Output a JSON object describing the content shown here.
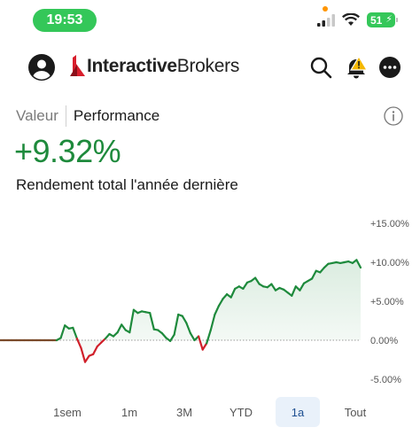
{
  "status": {
    "time": "19:53",
    "battery": "51"
  },
  "header": {
    "logo_bold": "Interactive",
    "logo_light": "Brokers"
  },
  "tabs": [
    {
      "label": "Valeur",
      "active": false
    },
    {
      "label": "Performance",
      "active": true
    }
  ],
  "performance": {
    "value": "+9.32%",
    "subtitle": "Rendement total l'année dernière"
  },
  "ranges": [
    {
      "label": "1sem",
      "active": false
    },
    {
      "label": "1m",
      "active": false
    },
    {
      "label": "3M",
      "active": false
    },
    {
      "label": "YTD",
      "active": false
    },
    {
      "label": "1a",
      "active": true
    },
    {
      "label": "Tout",
      "active": false
    }
  ],
  "colors": {
    "positive": "#1e8a3c",
    "negative": "#d0202a",
    "flat": "#7a4a2a",
    "accent": "#34c759"
  },
  "chart_data": {
    "type": "line",
    "title": "",
    "xlabel": "",
    "ylabel": "",
    "ylim": [
      -5,
      15
    ],
    "yticks": [
      15,
      10,
      5,
      0,
      -5
    ],
    "ytick_labels": [
      "+15.00%",
      "+10.00%",
      "+5.00%",
      "0.00%",
      "-5.00%"
    ],
    "grid": false,
    "series": [
      {
        "values": [
          0,
          0,
          0,
          0,
          0,
          0,
          0,
          0,
          0,
          0,
          0,
          0,
          0,
          0,
          0,
          0.3,
          1.9,
          1.5,
          1.6,
          0.2,
          -1.0,
          -2.8,
          -2.0,
          -1.8,
          -0.8,
          -0.3,
          0.2,
          0.8,
          0.5,
          1.0,
          2.0,
          1.3,
          1.0,
          3.9,
          3.5,
          3.7,
          3.6,
          3.5,
          1.4,
          1.3,
          0.9,
          0.3,
          -0.1,
          0.7,
          3.3,
          3.1,
          2.2,
          0.9,
          0.0,
          0.5,
          -1.2,
          -0.4,
          1.3,
          3.3,
          4.4,
          5.3,
          5.9,
          5.5,
          6.6,
          6.9,
          6.6,
          7.4,
          7.6,
          8.0,
          7.2,
          6.9,
          6.8,
          7.2,
          6.4,
          6.7,
          6.5,
          6.1,
          5.7,
          6.9,
          6.4,
          7.3,
          7.6,
          7.9,
          8.9,
          8.7,
          9.3,
          9.8,
          9.9,
          10.0,
          9.9,
          10.0,
          10.1,
          9.9,
          10.3,
          9.32
        ]
      }
    ]
  }
}
